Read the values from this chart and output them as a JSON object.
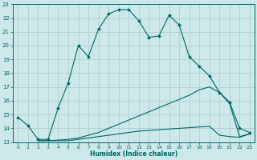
{
  "xlabel": "Humidex (Indice chaleur)",
  "ylabel": "",
  "xlim": [
    -0.5,
    23.5
  ],
  "ylim": [
    13,
    23
  ],
  "bg_color": "#cce8e8",
  "grid_color": "#aacccc",
  "line_color": "#006666",
  "line1_x": [
    0,
    1,
    2,
    3,
    4,
    5,
    6,
    7,
    8,
    9,
    10,
    11,
    12,
    13,
    14,
    15,
    16,
    17,
    18,
    19,
    20,
    21,
    22,
    23
  ],
  "line1_y": [
    14.8,
    14.2,
    13.2,
    13.2,
    15.5,
    17.3,
    20.0,
    19.2,
    21.2,
    22.3,
    22.6,
    22.6,
    21.8,
    20.6,
    20.7,
    22.2,
    21.5,
    19.2,
    18.5,
    17.8,
    16.6,
    15.9,
    14.0,
    13.7
  ],
  "line2_x": [
    2,
    3,
    4,
    5,
    6,
    7,
    8,
    9,
    10,
    11,
    12,
    13,
    14,
    15,
    16,
    17,
    18,
    19,
    20,
    21,
    22,
    23
  ],
  "line2_y": [
    13.1,
    13.1,
    13.15,
    13.2,
    13.3,
    13.5,
    13.7,
    14.0,
    14.3,
    14.6,
    14.9,
    15.2,
    15.5,
    15.8,
    16.1,
    16.4,
    16.8,
    17.0,
    16.6,
    15.8,
    13.4,
    13.6
  ],
  "line3_x": [
    2,
    3,
    4,
    5,
    6,
    7,
    8,
    9,
    10,
    11,
    12,
    13,
    14,
    15,
    16,
    17,
    18,
    19,
    20,
    21,
    22,
    23
  ],
  "line3_y": [
    13.1,
    13.1,
    13.1,
    13.1,
    13.2,
    13.3,
    13.4,
    13.5,
    13.6,
    13.7,
    13.8,
    13.85,
    13.9,
    13.95,
    14.0,
    14.05,
    14.1,
    14.15,
    13.5,
    13.4,
    13.35,
    13.6
  ],
  "line4_x": [
    2,
    23
  ],
  "line4_y": [
    13.1,
    13.6
  ],
  "yticks": [
    13,
    14,
    15,
    16,
    17,
    18,
    19,
    20,
    21,
    22,
    23
  ],
  "xticks": [
    0,
    1,
    2,
    3,
    4,
    5,
    6,
    7,
    8,
    9,
    10,
    11,
    12,
    13,
    14,
    15,
    16,
    17,
    18,
    19,
    20,
    21,
    22,
    23
  ]
}
